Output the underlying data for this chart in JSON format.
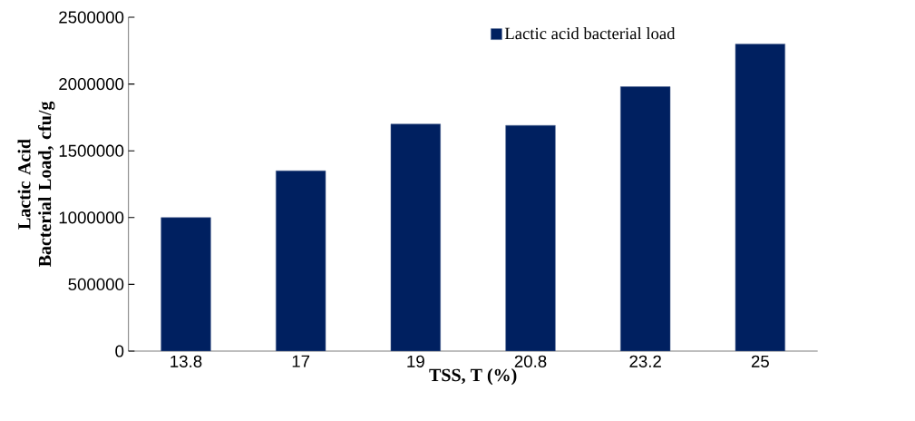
{
  "chart_data": {
    "type": "bar",
    "xlabel": "TSS, T (%)",
    "ylabel": "Lactic Acid Bacterial Load, cfu/g",
    "categories": [
      "13.8",
      "17",
      "19",
      "20.8",
      "23.2",
      "25"
    ],
    "series": [
      {
        "name": "Lactic acid bacterial load",
        "color": "#002060",
        "values": [
          1000000,
          1350000,
          1700000,
          1690000,
          1980000,
          2300000
        ]
      }
    ],
    "ylim": [
      0,
      2500000
    ],
    "yticks": [
      0,
      500000,
      1000000,
      1500000,
      2000000,
      2500000
    ],
    "legend": "top right",
    "grid": false
  }
}
